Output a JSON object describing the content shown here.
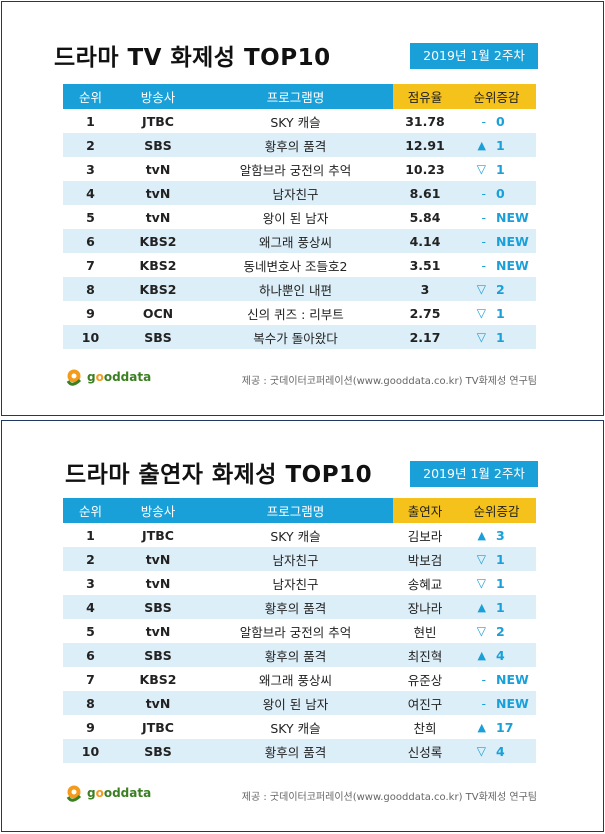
{
  "tables": [
    {
      "title": "드라마 TV 화제성 TOP10",
      "date": "2019년 1월 2주차",
      "headers": [
        "순위",
        "방송사",
        "프로그램명",
        "점유율",
        "순위증감"
      ],
      "rows": [
        {
          "rank": "1",
          "station": "JTBC",
          "program": "SKY 캐슬",
          "value": "31.78",
          "dir": "-",
          "dir_type": "none",
          "change": "0"
        },
        {
          "rank": "2",
          "station": "SBS",
          "program": "황후의 품격",
          "value": "12.91",
          "dir": "▲",
          "dir_type": "up",
          "change": "1"
        },
        {
          "rank": "3",
          "station": "tvN",
          "program": "알함브라 궁전의 추억",
          "value": "10.23",
          "dir": "▽",
          "dir_type": "down",
          "change": "1"
        },
        {
          "rank": "4",
          "station": "tvN",
          "program": "남자친구",
          "value": "8.61",
          "dir": "-",
          "dir_type": "none",
          "change": "0"
        },
        {
          "rank": "5",
          "station": "tvN",
          "program": "왕이 된 남자",
          "value": "5.84",
          "dir": "-",
          "dir_type": "none",
          "change": "NEW"
        },
        {
          "rank": "6",
          "station": "KBS2",
          "program": "왜그래 풍상씨",
          "value": "4.14",
          "dir": "-",
          "dir_type": "none",
          "change": "NEW"
        },
        {
          "rank": "7",
          "station": "KBS2",
          "program": "동네변호사 조들호2",
          "value": "3.51",
          "dir": "-",
          "dir_type": "none",
          "change": "NEW"
        },
        {
          "rank": "8",
          "station": "KBS2",
          "program": "하나뿐인 내편",
          "value": "3",
          "dir": "▽",
          "dir_type": "down",
          "change": "2"
        },
        {
          "rank": "9",
          "station": "OCN",
          "program": "신의 퀴즈 : 리부트",
          "value": "2.75",
          "dir": "▽",
          "dir_type": "down",
          "change": "1"
        },
        {
          "rank": "10",
          "station": "SBS",
          "program": "복수가 돌아왔다",
          "value": "2.17",
          "dir": "▽",
          "dir_type": "down",
          "change": "1"
        }
      ]
    },
    {
      "title": "드라마 출연자 화제성 TOP10",
      "date": "2019년 1월 2주차",
      "headers": [
        "순위",
        "방송사",
        "프로그램명",
        "출연자",
        "순위증감"
      ],
      "rows": [
        {
          "rank": "1",
          "station": "JTBC",
          "program": "SKY 캐슬",
          "value": "김보라",
          "dir": "▲",
          "dir_type": "up",
          "change": "3"
        },
        {
          "rank": "2",
          "station": "tvN",
          "program": "남자친구",
          "value": "박보검",
          "dir": "▽",
          "dir_type": "down",
          "change": "1"
        },
        {
          "rank": "3",
          "station": "tvN",
          "program": "남자친구",
          "value": "송혜교",
          "dir": "▽",
          "dir_type": "down",
          "change": "1"
        },
        {
          "rank": "4",
          "station": "SBS",
          "program": "황후의 품격",
          "value": "장나라",
          "dir": "▲",
          "dir_type": "up",
          "change": "1"
        },
        {
          "rank": "5",
          "station": "tvN",
          "program": "알함브라 궁전의 추억",
          "value": "현빈",
          "dir": "▽",
          "dir_type": "down",
          "change": "2"
        },
        {
          "rank": "6",
          "station": "SBS",
          "program": "황후의 품격",
          "value": "최진혁",
          "dir": "▲",
          "dir_type": "up",
          "change": "4"
        },
        {
          "rank": "7",
          "station": "KBS2",
          "program": "왜그래 풍상씨",
          "value": "유준상",
          "dir": "-",
          "dir_type": "none",
          "change": "NEW"
        },
        {
          "rank": "8",
          "station": "tvN",
          "program": "왕이 된 남자",
          "value": "여진구",
          "dir": "-",
          "dir_type": "none",
          "change": "NEW"
        },
        {
          "rank": "9",
          "station": "JTBC",
          "program": "SKY 캐슬",
          "value": "찬희",
          "dir": "▲",
          "dir_type": "up",
          "change": "17"
        },
        {
          "rank": "10",
          "station": "SBS",
          "program": "황후의 품격",
          "value": "신성록",
          "dir": "▽",
          "dir_type": "down",
          "change": "4"
        }
      ]
    }
  ],
  "logo": {
    "text_a": "g",
    "text_b": "o",
    "text_c": "oddata"
  },
  "source": "제공 : 굿데이터코퍼레이션(www.gooddata.co.kr) TV화제성 연구팀",
  "colors": {
    "header_blue": "#1aa0d8",
    "header_yellow": "#f5c21b",
    "row_alt": "#dceef8",
    "frame": "#1f3864"
  }
}
